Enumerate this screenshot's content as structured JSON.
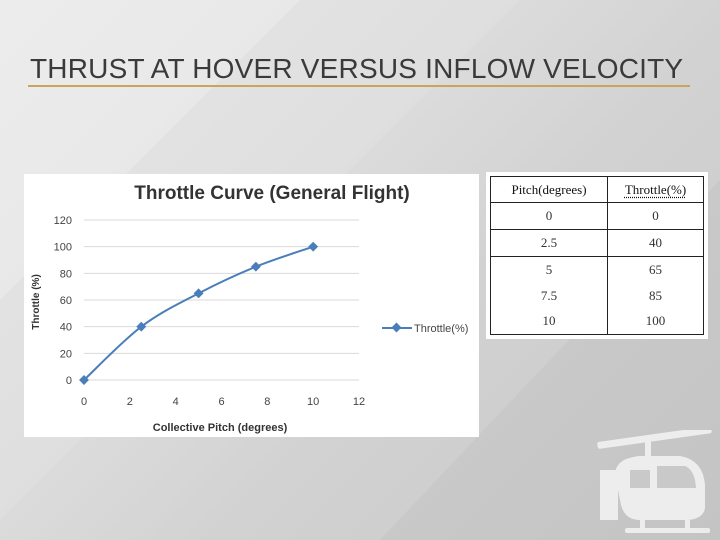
{
  "slide": {
    "title": "THRUST AT HOVER VERSUS INFLOW VELOCITY"
  },
  "colors": {
    "series": "#4a7ebb",
    "title_rule": "#c8a55a"
  },
  "chart_data": {
    "type": "line",
    "title": "Throttle Curve (General Flight)",
    "xlabel": "Collective Pitch (degrees)",
    "ylabel": "Throttle (%)",
    "xlim": [
      0,
      12
    ],
    "ylim": [
      0,
      120
    ],
    "xticks": [
      "0",
      "2",
      "4",
      "6",
      "8",
      "10",
      "12"
    ],
    "yticks": [
      "0",
      "20",
      "40",
      "60",
      "80",
      "100",
      "120"
    ],
    "legend_position": "right",
    "grid": true,
    "series": [
      {
        "name": "Throttle(%)",
        "x": [
          0,
          2.5,
          5,
          7.5,
          10
        ],
        "y": [
          0,
          40,
          65,
          85,
          100
        ]
      }
    ]
  },
  "table": {
    "headers": [
      "Pitch(degrees)",
      "Throttle(%)"
    ],
    "rows": [
      [
        "0",
        "0"
      ],
      [
        "2.5",
        "40"
      ],
      [
        "5",
        "65"
      ],
      [
        "7.5",
        "85"
      ],
      [
        "10",
        "100"
      ]
    ]
  }
}
